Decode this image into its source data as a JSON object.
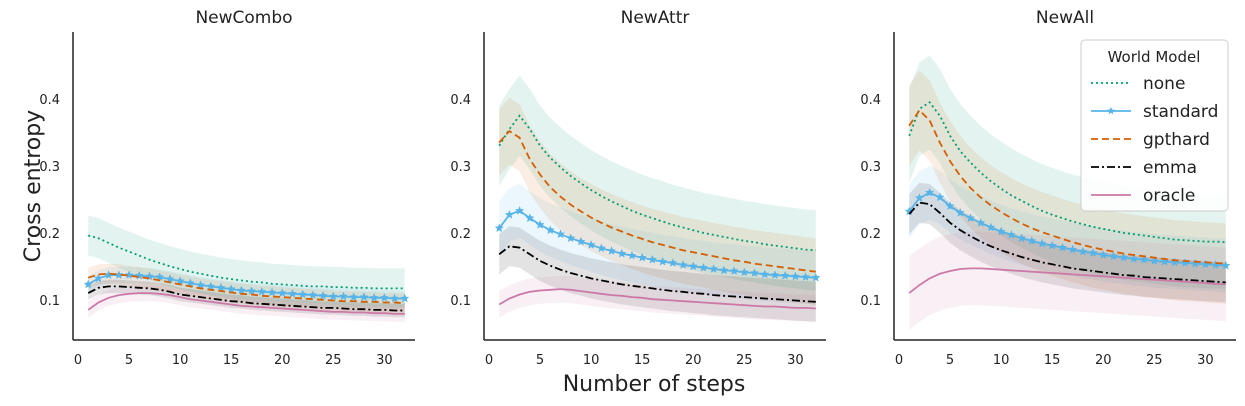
{
  "figure": {
    "ylabel": "Cross entropy",
    "xlabel": "Number of steps",
    "legend": {
      "title": "World Model",
      "placement": "top-right of third panel"
    }
  },
  "chart_data": {
    "type": "line",
    "xlim": [
      0,
      33
    ],
    "ylim": [
      0.04,
      0.5
    ],
    "x_ticks": [
      0,
      5,
      10,
      15,
      20,
      25,
      30
    ],
    "y_ticks": [
      0.1,
      0.2,
      0.3,
      0.4
    ],
    "y_tick_labels": [
      "0.1",
      "0.2",
      "0.3",
      "0.4"
    ],
    "x": [
      1,
      2,
      3,
      4,
      5,
      6,
      7,
      8,
      9,
      10,
      11,
      12,
      13,
      14,
      15,
      16,
      17,
      18,
      19,
      20,
      21,
      22,
      23,
      24,
      25,
      26,
      27,
      28,
      29,
      30,
      31,
      32
    ],
    "series_styles": [
      {
        "name": "none",
        "color": "#009E73",
        "dash": "2,3",
        "marker": "none"
      },
      {
        "name": "standard",
        "color": "#56B4E9",
        "dash": "",
        "marker": "star"
      },
      {
        "name": "gpthard",
        "color": "#D55E00",
        "dash": "7,4",
        "marker": "none"
      },
      {
        "name": "emma",
        "color": "#000000",
        "dash": "8,3,2,3",
        "marker": "none"
      },
      {
        "name": "oracle",
        "color": "#CC79A7",
        "dash": "",
        "marker": "none"
      }
    ],
    "panels": [
      {
        "title": "NewCombo",
        "series": [
          {
            "name": "none",
            "values": [
              0.196,
              0.192,
              0.185,
              0.178,
              0.172,
              0.166,
              0.16,
              0.155,
              0.15,
              0.146,
              0.142,
              0.139,
              0.136,
              0.133,
              0.131,
              0.129,
              0.127,
              0.126,
              0.124,
              0.123,
              0.122,
              0.121,
              0.12,
              0.12,
              0.119,
              0.119,
              0.118,
              0.118,
              0.117,
              0.117,
              0.117,
              0.117
            ],
            "band": 0.03
          },
          {
            "name": "standard",
            "values": [
              0.123,
              0.132,
              0.137,
              0.137,
              0.137,
              0.136,
              0.135,
              0.134,
              0.131,
              0.128,
              0.125,
              0.122,
              0.12,
              0.118,
              0.116,
              0.114,
              0.113,
              0.112,
              0.111,
              0.11,
              0.109,
              0.108,
              0.107,
              0.106,
              0.105,
              0.105,
              0.104,
              0.104,
              0.103,
              0.103,
              0.102,
              0.102
            ],
            "band": 0.012
          },
          {
            "name": "gpthard",
            "values": [
              0.133,
              0.138,
              0.139,
              0.138,
              0.136,
              0.134,
              0.132,
              0.129,
              0.126,
              0.123,
              0.12,
              0.117,
              0.115,
              0.113,
              0.111,
              0.109,
              0.108,
              0.106,
              0.105,
              0.104,
              0.103,
              0.102,
              0.101,
              0.1,
              0.099,
              0.098,
              0.098,
              0.097,
              0.097,
              0.096,
              0.096,
              0.095
            ],
            "band": 0.015
          },
          {
            "name": "emma",
            "values": [
              0.11,
              0.118,
              0.12,
              0.12,
              0.119,
              0.118,
              0.117,
              0.115,
              0.112,
              0.108,
              0.106,
              0.104,
              0.102,
              0.1,
              0.098,
              0.097,
              0.095,
              0.094,
              0.093,
              0.092,
              0.091,
              0.09,
              0.089,
              0.088,
              0.088,
              0.087,
              0.086,
              0.086,
              0.085,
              0.085,
              0.084,
              0.084
            ],
            "band": 0.01
          },
          {
            "name": "oracle",
            "values": [
              0.085,
              0.096,
              0.103,
              0.107,
              0.109,
              0.11,
              0.11,
              0.109,
              0.107,
              0.104,
              0.101,
              0.099,
              0.097,
              0.095,
              0.093,
              0.091,
              0.09,
              0.089,
              0.088,
              0.087,
              0.086,
              0.085,
              0.084,
              0.083,
              0.082,
              0.082,
              0.081,
              0.081,
              0.08,
              0.08,
              0.079,
              0.079
            ],
            "band": 0.012
          }
        ]
      },
      {
        "title": "NewAttr",
        "series": [
          {
            "name": "none",
            "values": [
              0.33,
              0.355,
              0.375,
              0.355,
              0.33,
              0.312,
              0.298,
              0.285,
              0.274,
              0.264,
              0.255,
              0.247,
              0.24,
              0.233,
              0.227,
              0.222,
              0.217,
              0.212,
              0.208,
              0.204,
              0.2,
              0.197,
              0.194,
              0.191,
              0.188,
              0.186,
              0.183,
              0.181,
              0.179,
              0.177,
              0.175,
              0.174
            ],
            "band": 0.06
          },
          {
            "name": "standard",
            "values": [
              0.207,
              0.227,
              0.233,
              0.222,
              0.212,
              0.204,
              0.198,
              0.192,
              0.187,
              0.182,
              0.177,
              0.173,
              0.169,
              0.166,
              0.163,
              0.16,
              0.157,
              0.155,
              0.152,
              0.15,
              0.148,
              0.146,
              0.144,
              0.143,
              0.141,
              0.14,
              0.138,
              0.137,
              0.136,
              0.135,
              0.134,
              0.133
            ],
            "band": 0.04
          },
          {
            "name": "gpthard",
            "values": [
              0.335,
              0.352,
              0.342,
              0.31,
              0.287,
              0.268,
              0.254,
              0.242,
              0.232,
              0.223,
              0.215,
              0.208,
              0.202,
              0.196,
              0.191,
              0.186,
              0.182,
              0.178,
              0.174,
              0.171,
              0.168,
              0.165,
              0.162,
              0.159,
              0.157,
              0.154,
              0.152,
              0.15,
              0.148,
              0.146,
              0.144,
              0.142
            ],
            "band": 0.05
          },
          {
            "name": "emma",
            "values": [
              0.168,
              0.18,
              0.178,
              0.168,
              0.158,
              0.151,
              0.145,
              0.14,
              0.136,
              0.132,
              0.129,
              0.126,
              0.123,
              0.121,
              0.119,
              0.117,
              0.115,
              0.113,
              0.112,
              0.11,
              0.109,
              0.107,
              0.106,
              0.105,
              0.104,
              0.103,
              0.102,
              0.101,
              0.1,
              0.099,
              0.098,
              0.097
            ],
            "band": 0.03
          },
          {
            "name": "oracle",
            "values": [
              0.093,
              0.102,
              0.108,
              0.112,
              0.114,
              0.115,
              0.116,
              0.115,
              0.113,
              0.111,
              0.109,
              0.107,
              0.106,
              0.104,
              0.103,
              0.101,
              0.1,
              0.099,
              0.098,
              0.097,
              0.096,
              0.095,
              0.094,
              0.093,
              0.092,
              0.091,
              0.09,
              0.09,
              0.089,
              0.088,
              0.088,
              0.087
            ],
            "band": 0.02
          }
        ]
      },
      {
        "title": "NewAll",
        "series": [
          {
            "name": "none",
            "values": [
              0.345,
              0.385,
              0.395,
              0.375,
              0.345,
              0.322,
              0.305,
              0.29,
              0.277,
              0.266,
              0.256,
              0.248,
              0.24,
              0.233,
              0.227,
              0.222,
              0.217,
              0.213,
              0.209,
              0.206,
              0.203,
              0.2,
              0.198,
              0.196,
              0.194,
              0.192,
              0.19,
              0.189,
              0.188,
              0.187,
              0.187,
              0.186
            ],
            "band": 0.07
          },
          {
            "name": "standard",
            "values": [
              0.232,
              0.252,
              0.26,
              0.253,
              0.24,
              0.23,
              0.222,
              0.215,
              0.208,
              0.202,
              0.197,
              0.192,
              0.188,
              0.184,
              0.181,
              0.178,
              0.175,
              0.172,
              0.17,
              0.167,
              0.165,
              0.163,
              0.161,
              0.16,
              0.158,
              0.157,
              0.156,
              0.155,
              0.154,
              0.153,
              0.152,
              0.151
            ],
            "band": 0.04
          },
          {
            "name": "gpthard",
            "values": [
              0.36,
              0.383,
              0.368,
              0.335,
              0.307,
              0.285,
              0.267,
              0.253,
              0.241,
              0.231,
              0.222,
              0.214,
              0.207,
              0.201,
              0.196,
              0.191,
              0.186,
              0.182,
              0.178,
              0.175,
              0.172,
              0.169,
              0.167,
              0.165,
              0.163,
              0.161,
              0.159,
              0.158,
              0.157,
              0.156,
              0.155,
              0.154
            ],
            "band": 0.06
          },
          {
            "name": "emma",
            "values": [
              0.228,
              0.245,
              0.243,
              0.23,
              0.215,
              0.204,
              0.195,
              0.187,
              0.18,
              0.174,
              0.169,
              0.164,
              0.16,
              0.156,
              0.153,
              0.15,
              0.147,
              0.145,
              0.143,
              0.141,
              0.139,
              0.137,
              0.136,
              0.134,
              0.133,
              0.132,
              0.131,
              0.13,
              0.129,
              0.128,
              0.127,
              0.126
            ],
            "band": 0.03
          },
          {
            "name": "oracle",
            "values": [
              0.11,
              0.122,
              0.132,
              0.139,
              0.143,
              0.146,
              0.147,
              0.147,
              0.146,
              0.145,
              0.144,
              0.143,
              0.142,
              0.141,
              0.14,
              0.139,
              0.138,
              0.137,
              0.136,
              0.135,
              0.134,
              0.133,
              0.132,
              0.131,
              0.13,
              0.129,
              0.128,
              0.127,
              0.126,
              0.125,
              0.124,
              0.123
            ],
            "band": 0.055
          }
        ]
      }
    ]
  }
}
